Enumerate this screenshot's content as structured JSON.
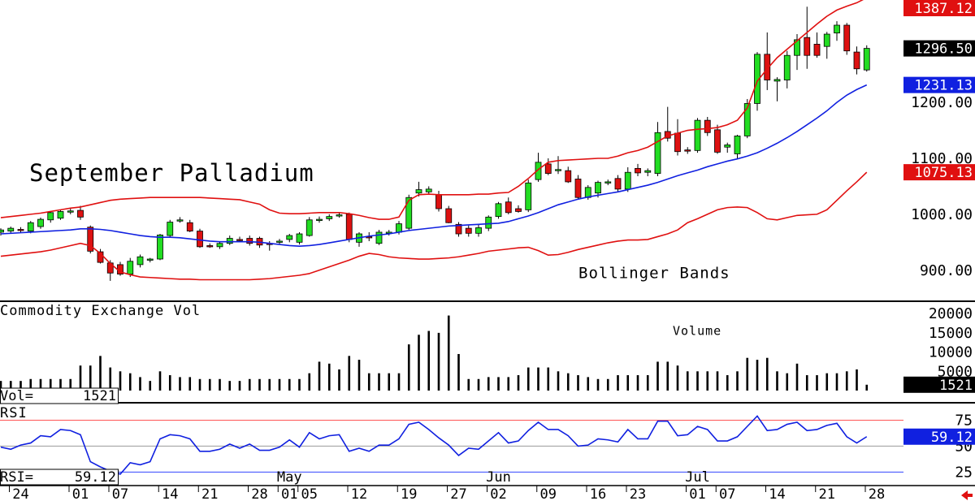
{
  "chart_data": [
    {
      "type": "candlestick",
      "title": "September Palladium",
      "annotation": "Bollinger Bands",
      "categories": [
        null,
        null,
        "24",
        null,
        null,
        null,
        null,
        null,
        "01",
        null,
        null,
        null,
        "07",
        null,
        null,
        null,
        null,
        "14",
        null,
        null,
        null,
        "21",
        null,
        null,
        null,
        null,
        "28",
        null,
        null,
        "01",
        null,
        "05",
        null,
        null,
        null,
        null,
        "12",
        null,
        null,
        null,
        null,
        "19",
        null,
        null,
        null,
        null,
        "27",
        null,
        null,
        null,
        "02",
        null,
        null,
        null,
        null,
        "09",
        null,
        null,
        null,
        null,
        "16",
        null,
        null,
        null,
        "23",
        null,
        null,
        null,
        null,
        null,
        "01",
        null,
        null,
        "07",
        null,
        null,
        null,
        null,
        "14",
        null,
        null,
        null,
        null,
        "21",
        null,
        null,
        null,
        null,
        "28"
      ],
      "month_labels": [
        null,
        "May",
        "Jun",
        "Jul"
      ],
      "open": [
        968,
        970,
        973,
        970,
        978,
        990,
        993,
        1004,
        1007,
        977,
        933,
        913,
        910,
        893,
        910,
        918,
        920,
        962,
        988,
        985,
        970,
        944,
        942,
        948,
        955,
        957,
        957,
        948,
        950,
        955,
        950,
        962,
        990,
        992,
        998,
        1000,
        950,
        960,
        948,
        966,
        968,
        975,
        1038,
        1040,
        1035,
        1010,
        982,
        975,
        966,
        975,
        996,
        1022,
        1010,
        1008,
        1062,
        1090,
        1078,
        1078,
        1063,
        1030,
        1038,
        1056,
        1064,
        1045,
        1082,
        1075,
        1073,
        1148,
        1145,
        1115,
        1114,
        1168,
        1151,
        1120,
        1108,
        1140,
        1198,
        1286,
        1238,
        1240,
        1284,
        1316,
        1304,
        1300,
        1324,
        1338,
        1290,
        1258,
        null
      ],
      "high": [
        975,
        978,
        977,
        988,
        994,
        1006,
        1008,
        1012,
        1015,
        980,
        938,
        918,
        915,
        922,
        928,
        922,
        965,
        990,
        995,
        990,
        974,
        948,
        952,
        962,
        960,
        962,
        960,
        952,
        956,
        965,
        968,
        995,
        996,
        1000,
        1003,
        1003,
        968,
        968,
        972,
        972,
        988,
        1035,
        1058,
        1050,
        1042,
        1015,
        986,
        980,
        982,
        998,
        1022,
        1030,
        1016,
        1062,
        1110,
        1100,
        1104,
        1085,
        1070,
        1052,
        1060,
        1062,
        1070,
        1084,
        1090,
        1082,
        1165,
        1192,
        1170,
        1120,
        1172,
        1174,
        1160,
        1128,
        1142,
        1206,
        1290,
        1325,
        1245,
        1292,
        1322,
        1371,
        1325,
        1326,
        1345,
        1342,
        1300,
        1302,
        null
      ],
      "low": [
        962,
        965,
        968,
        966,
        974,
        985,
        990,
        1000,
        990,
        930,
        912,
        881,
        890,
        888,
        905,
        914,
        918,
        958,
        985,
        968,
        940,
        940,
        938,
        945,
        950,
        944,
        940,
        935,
        946,
        950,
        946,
        960,
        985,
        988,
        994,
        950,
        942,
        952,
        945,
        962,
        964,
        972,
        1032,
        1035,
        1005,
        984,
        960,
        960,
        960,
        970,
        992,
        1000,
        1003,
        1004,
        1058,
        1070,
        1072,
        1056,
        1027,
        1026,
        1030,
        1052,
        1040,
        1040,
        1068,
        1068,
        1068,
        1130,
        1105,
        1108,
        1110,
        1140,
        1108,
        1110,
        1100,
        1136,
        1185,
        1222,
        1202,
        1225,
        1258,
        1260,
        1280,
        1278,
        1310,
        1285,
        1250,
        1255,
        null
      ],
      "close": [
        972,
        975,
        971,
        985,
        991,
        1003,
        1005,
        1006,
        995,
        934,
        914,
        895,
        893,
        916,
        924,
        920,
        963,
        986,
        990,
        970,
        942,
        943,
        948,
        957,
        954,
        948,
        945,
        947,
        952,
        962,
        965,
        990,
        991,
        996,
        999,
        955,
        965,
        958,
        968,
        968,
        983,
        1030,
        1044,
        1045,
        1010,
        985,
        965,
        966,
        976,
        995,
        1019,
        1003,
        1005,
        1056,
        1093,
        1073,
        1080,
        1058,
        1030,
        1048,
        1057,
        1058,
        1045,
        1075,
        1074,
        1078,
        1146,
        1136,
        1112,
        1114,
        1168,
        1146,
        1111,
        1124,
        1140,
        1198,
        1286,
        1240,
        1241,
        1284,
        1312,
        1284,
        1284,
        1322,
        1338,
        1292,
        1260,
        1296.5,
        null
      ],
      "last_label": "1296.50",
      "up_color": "#22dd22",
      "down_color": "#dd1111",
      "bands": [
        {
          "color": "#e01010",
          "values": [
            994,
            996,
            998,
            1000,
            1002,
            1005,
            1008,
            1011,
            1013,
            1017,
            1021,
            1025,
            1027,
            1028,
            1029,
            1030,
            1030,
            1030,
            1030,
            1030,
            1030,
            1029,
            1028,
            1027,
            1026,
            1022,
            1018,
            1008,
            1002,
            1001,
            1001,
            1002,
            1003,
            1003,
            1003,
            1001,
            998,
            994,
            991,
            991,
            995,
            1025,
            1035,
            1036,
            1035,
            1035,
            1035,
            1035,
            1036,
            1036,
            1038,
            1039,
            1050,
            1064,
            1080,
            1093,
            1096,
            1097,
            1098,
            1099,
            1100,
            1100,
            1104,
            1110,
            1114,
            1120,
            1130,
            1140,
            1145,
            1150,
            1152,
            1153,
            1155,
            1160,
            1168,
            1190,
            1238,
            1260,
            1280,
            1295,
            1310,
            1325,
            1340,
            1354,
            1365,
            1372,
            1378,
            1387.12,
            null
          ]
        },
        {
          "color": "#1020e0",
          "values": [
            965,
            966,
            967,
            968,
            969,
            970,
            971,
            972,
            974,
            974,
            973,
            971,
            968,
            965,
            962,
            960,
            959,
            959,
            958,
            956,
            954,
            952,
            951,
            951,
            951,
            951,
            950,
            948,
            946,
            944,
            943,
            944,
            946,
            949,
            952,
            955,
            958,
            961,
            963,
            965,
            968,
            971,
            973,
            975,
            977,
            979,
            980,
            981,
            982,
            983,
            984,
            987,
            992,
            997,
            1003,
            1010,
            1017,
            1022,
            1027,
            1031,
            1034,
            1037,
            1040,
            1044,
            1048,
            1052,
            1057,
            1063,
            1069,
            1074,
            1079,
            1085,
            1090,
            1095,
            1099,
            1104,
            1110,
            1118,
            1127,
            1137,
            1148,
            1160,
            1172,
            1185,
            1200,
            1213,
            1223,
            1231.13,
            null
          ]
        },
        {
          "color": "#e01010",
          "values": [
            925,
            927,
            929,
            931,
            933,
            936,
            940,
            944,
            948,
            944,
            930,
            912,
            897,
            892,
            888,
            887,
            886,
            885,
            884,
            884,
            883,
            883,
            883,
            883,
            883,
            883,
            884,
            885,
            887,
            889,
            891,
            894,
            900,
            906,
            912,
            918,
            925,
            930,
            928,
            924,
            922,
            921,
            920,
            920,
            921,
            922,
            924,
            927,
            930,
            934,
            936,
            938,
            940,
            941,
            935,
            927,
            928,
            932,
            937,
            941,
            945,
            949,
            952,
            954,
            954,
            955,
            960,
            965,
            972,
            985,
            992,
            1000,
            1008,
            1012,
            1013,
            1012,
            1003,
            992,
            990,
            994,
            998,
            999,
            1000,
            1008,
            1025,
            1042,
            1058,
            1075.13,
            null
          ]
        }
      ],
      "ylim": [
        846,
        1383
      ],
      "yticks": [
        {
          "value": 900,
          "label": "900.00"
        },
        {
          "value": 1000,
          "label": "1000.00"
        },
        {
          "value": 1100,
          "label": "1100.00"
        },
        {
          "value": 1200,
          "label": "1200.00"
        }
      ],
      "grid": false
    },
    {
      "type": "bar",
      "title": "Commodity Exchange Vol",
      "annotation": "Volume",
      "caption": "Vol=",
      "color": "#000000",
      "values": [
        2500,
        2500,
        2500,
        3000,
        3000,
        3000,
        3000,
        3000,
        6500,
        6500,
        9000,
        6000,
        5000,
        4500,
        3500,
        2500,
        5000,
        4000,
        3500,
        3500,
        3000,
        3000,
        3000,
        2500,
        2500,
        3000,
        3000,
        3000,
        3000,
        3000,
        3000,
        4500,
        7500,
        7000,
        5500,
        9000,
        8000,
        4500,
        4500,
        4500,
        4500,
        12000,
        14500,
        15500,
        15000,
        19500,
        9500,
        3000,
        3000,
        3500,
        3500,
        3500,
        4000,
        6000,
        6000,
        6000,
        5000,
        4500,
        4000,
        3500,
        3000,
        3000,
        4000,
        4000,
        4000,
        4000,
        7500,
        7500,
        6500,
        5000,
        5000,
        5000,
        5000,
        4000,
        5000,
        8500,
        8000,
        8500,
        5000,
        4500,
        7000,
        4000,
        4000,
        4500,
        4500,
        5000,
        5500,
        1521,
        null
      ],
      "ylim": [
        0,
        23000
      ],
      "yticks": [
        5000,
        10000,
        15000,
        20000
      ],
      "grid": false
    },
    {
      "type": "line",
      "title": "RSI",
      "caption": "RSI=",
      "color": "#1020e0",
      "values": [
        49,
        47,
        51,
        53,
        60,
        59,
        66,
        65,
        61,
        35,
        30,
        26,
        23,
        34,
        32,
        35,
        57,
        61,
        60,
        57,
        45,
        45,
        47,
        52,
        48,
        52,
        46,
        46,
        49,
        56,
        49,
        63,
        57,
        60,
        61,
        45,
        48,
        45,
        51,
        51,
        57,
        71,
        73,
        66,
        58,
        51,
        41,
        48,
        47,
        55,
        63,
        53,
        55,
        65,
        73,
        66,
        66,
        60,
        50,
        51,
        57,
        56,
        54,
        66,
        57,
        57,
        74,
        74,
        60,
        61,
        69,
        66,
        55,
        55,
        59,
        69,
        79,
        65,
        66,
        71,
        73,
        65,
        66,
        70,
        72,
        59,
        53,
        59.12,
        null
      ],
      "ylim": [
        12,
        91
      ],
      "yticks": [
        25,
        50,
        75
      ],
      "grid": true,
      "grid_colors": [
        "#3344ff",
        "#999999",
        "#ff5555"
      ]
    }
  ]
}
